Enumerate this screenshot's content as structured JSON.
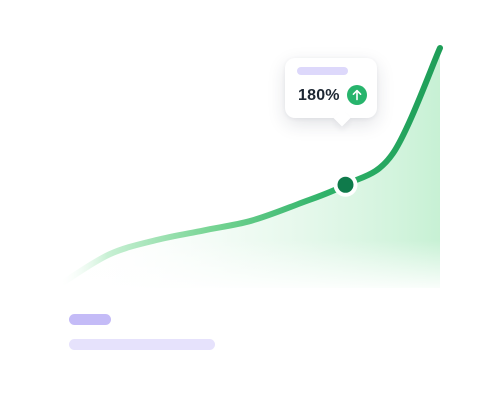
{
  "chart_data": {
    "type": "area",
    "x": [
      0,
      1,
      2,
      3,
      4,
      5,
      6,
      7,
      8
    ],
    "series": [
      {
        "values": [
          2,
          14,
          20,
          24,
          28,
          35,
          43,
          56,
          100
        ],
        "color": "#1e9e58"
      }
    ],
    "ylim": [
      0,
      100
    ],
    "grid": "vertical-dashed",
    "highlight": {
      "index": 6,
      "label": "180%",
      "trend": "up",
      "marker_color": "#0f7a4b"
    }
  },
  "icons": {
    "trend": "arrow-up-icon"
  },
  "colors": {
    "line_end": "#1e9e58",
    "line_start": "#c8f0d4",
    "area": "#c4f0d2",
    "badge": "#27b46c",
    "grid": "#cfd8e6",
    "placeholder_dark": "#c4bbf7",
    "placeholder_light": "#e6e2fc"
  }
}
